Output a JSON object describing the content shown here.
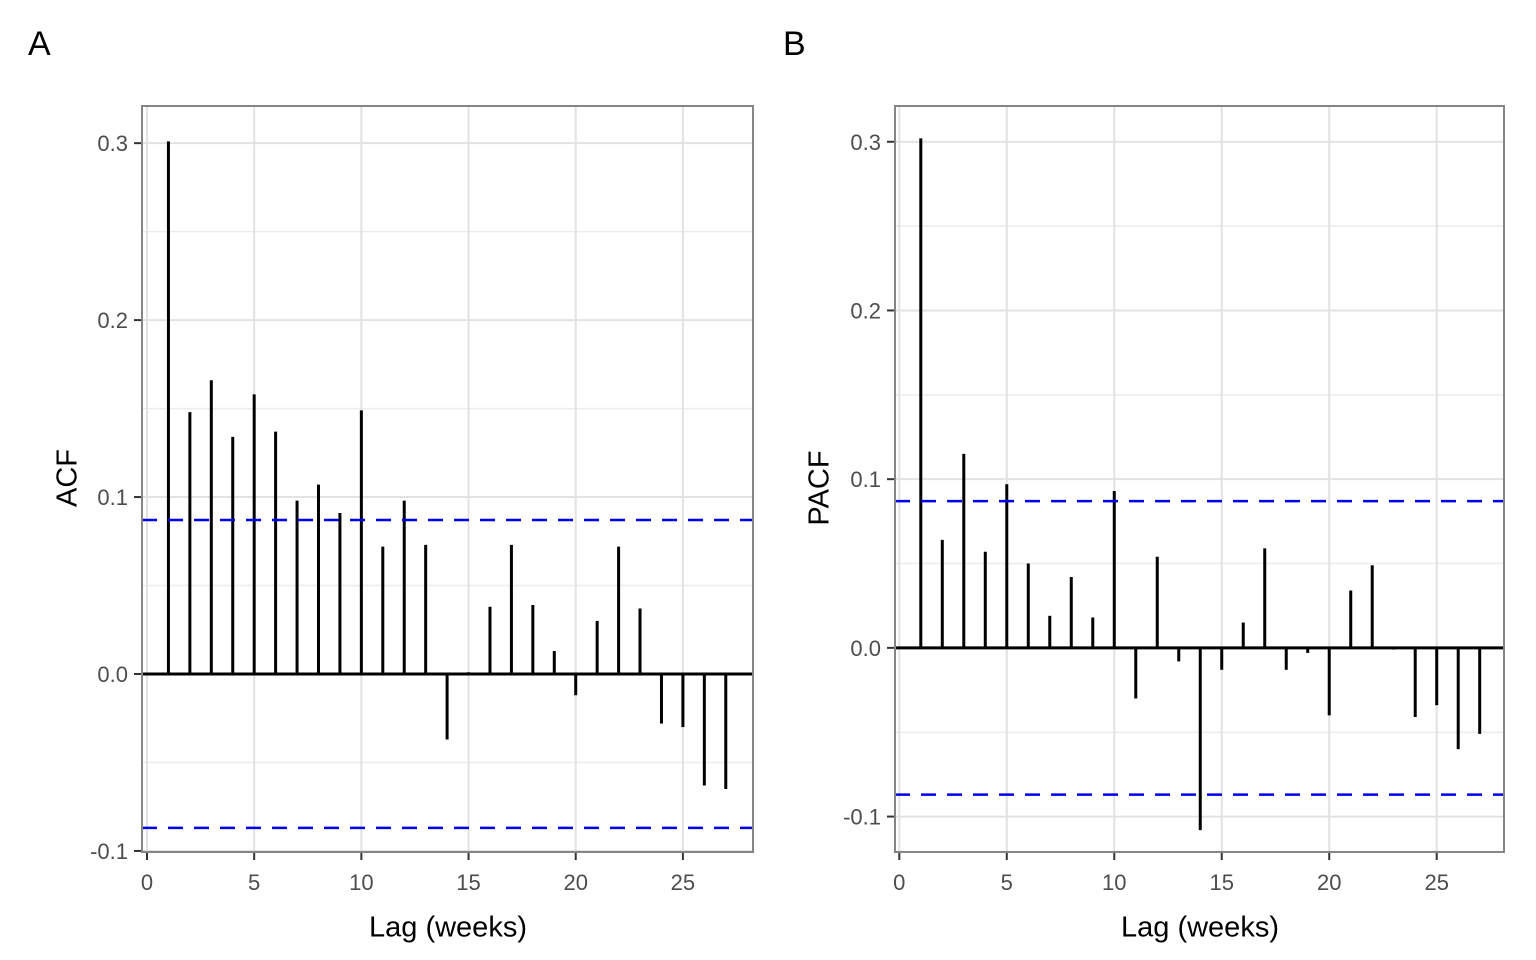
{
  "figure": {
    "background": "#ffffff",
    "panel_tags": [
      "A",
      "B"
    ]
  },
  "colors": {
    "bar": "#000000",
    "zero_line": "#000000",
    "ci_line": "#0000EE",
    "grid_major": "#E2E2E2",
    "grid_minor": "#ECECEC",
    "panel_border": "#858585",
    "tick_mark": "#333333",
    "tick_label": "#4D4D4D",
    "axis_title": "#000000"
  },
  "chart_data": [
    {
      "type": "bar",
      "title": "A",
      "ylabel": "ACF",
      "xlabel": "Lag (weeks)",
      "x": [
        1,
        2,
        3,
        4,
        5,
        6,
        7,
        8,
        9,
        10,
        11,
        12,
        13,
        14,
        15,
        16,
        17,
        18,
        19,
        20,
        21,
        22,
        23,
        24,
        25,
        26,
        27
      ],
      "values": [
        0.301,
        0.148,
        0.166,
        0.134,
        0.158,
        0.137,
        0.098,
        0.107,
        0.091,
        0.149,
        0.072,
        0.098,
        0.073,
        -0.037,
        0.001,
        0.038,
        0.073,
        0.039,
        0.013,
        -0.012,
        0.03,
        0.072,
        0.037,
        -0.028,
        -0.03,
        -0.063,
        -0.065
      ],
      "conf_bounds": {
        "upper": 0.087,
        "lower": -0.087
      },
      "y_ticks": [
        0.3,
        0.2,
        0.1,
        0.0,
        -0.1
      ],
      "y_tick_labels": [
        "0.3",
        "0.2",
        "0.1",
        "0.0",
        "-0.1"
      ],
      "x_ticks": [
        0,
        5,
        10,
        15,
        20,
        25
      ],
      "x_tick_labels": [
        "0",
        "5",
        "10",
        "15",
        "20",
        "25"
      ],
      "ylim": [
        -0.1006,
        0.321
      ],
      "xlim": [
        -0.233,
        28.27
      ],
      "grid": true,
      "legend": "none"
    },
    {
      "type": "bar",
      "title": "B",
      "ylabel": "PACF",
      "xlabel": "Lag (weeks)",
      "x": [
        1,
        2,
        3,
        4,
        5,
        6,
        7,
        8,
        9,
        10,
        11,
        12,
        13,
        14,
        15,
        16,
        17,
        18,
        19,
        20,
        21,
        22,
        23,
        24,
        25,
        26,
        27
      ],
      "values": [
        0.302,
        0.064,
        0.115,
        0.057,
        0.097,
        0.05,
        0.019,
        0.042,
        0.018,
        0.093,
        -0.03,
        0.054,
        -0.008,
        -0.108,
        -0.013,
        0.015,
        0.059,
        -0.013,
        -0.003,
        -0.04,
        0.034,
        0.049,
        -0.001,
        -0.041,
        -0.034,
        -0.06,
        -0.051
      ],
      "conf_bounds": {
        "upper": 0.087,
        "lower": -0.087
      },
      "y_ticks": [
        0.3,
        0.2,
        0.1,
        0.0,
        -0.1
      ],
      "y_tick_labels": [
        "0.3",
        "0.2",
        "0.1",
        "0.0",
        "-0.1"
      ],
      "x_ticks": [
        0,
        5,
        10,
        15,
        20,
        25
      ],
      "x_tick_labels": [
        "0",
        "5",
        "10",
        "15",
        "20",
        "25"
      ],
      "ylim": [
        -0.121,
        0.3212
      ],
      "xlim": [
        -0.2,
        28.13
      ],
      "grid": true,
      "legend": "none"
    }
  ]
}
